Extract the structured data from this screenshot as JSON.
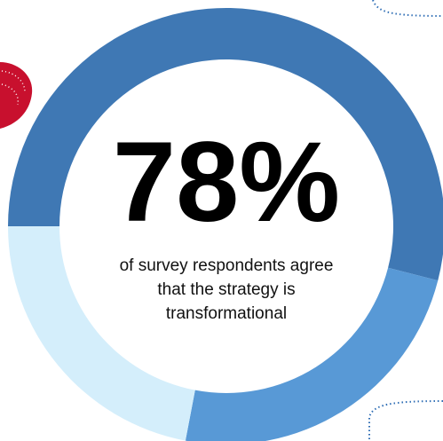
{
  "chart_data": {
    "type": "donut",
    "values": [
      54,
      24,
      22
    ],
    "colors": [
      "#3f78b4",
      "#5899d6",
      "#d4eefb"
    ],
    "center_label": "78%",
    "caption": [
      "of survey respondents agree",
      "that the strategy is",
      "transformational"
    ]
  }
}
